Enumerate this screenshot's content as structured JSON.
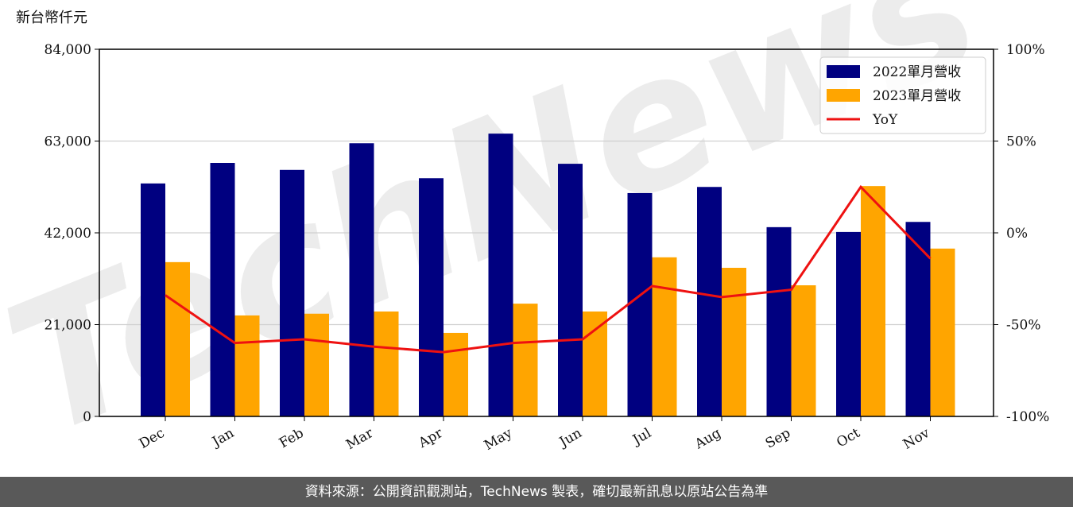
{
  "chart_data": {
    "type": "bar",
    "y_label": "新台幣仟元",
    "watermark": "TechNews",
    "categories": [
      "Dec",
      "Jan",
      "Feb",
      "Mar",
      "Apr",
      "May",
      "Jun",
      "Jul",
      "Aug",
      "Sep",
      "Oct",
      "Nov"
    ],
    "series": [
      {
        "name": "2022單月營收",
        "color": "#000080",
        "values": [
          53300,
          58000,
          56400,
          62500,
          54500,
          64700,
          57800,
          51100,
          52500,
          43300,
          42200,
          44500
        ]
      },
      {
        "name": "2023單月營收",
        "color": "#ffa500",
        "values": [
          35300,
          23100,
          23500,
          24000,
          19100,
          25800,
          24000,
          36400,
          34000,
          30000,
          52700,
          38400
        ]
      },
      {
        "name": "YoY",
        "color": "#ee1111",
        "type": "line",
        "axis": "y2",
        "values": [
          -34,
          -60,
          -58,
          -62,
          -65,
          -60,
          -58,
          -29,
          -35,
          -31,
          25,
          -14
        ]
      }
    ],
    "ylim": [
      0,
      84000
    ],
    "yticks": [
      0,
      {
        "value": 21000,
        "label": "21,000"
      },
      {
        "value": 42000,
        "label": "42,000"
      },
      {
        "value": 63000,
        "label": "63,000"
      },
      {
        "value": 84000,
        "label": "84,000"
      }
    ],
    "y2lim": [
      -100,
      100
    ],
    "y2ticks": [
      {
        "value": -100,
        "label": "-100%"
      },
      {
        "value": -50,
        "label": "-50%"
      },
      {
        "value": 0,
        "label": "0%"
      },
      {
        "value": 50,
        "label": "50%"
      },
      {
        "value": 100,
        "label": "100%"
      }
    ],
    "grid": true,
    "legend": "upper right",
    "source": "資料來源：公開資訊觀測站，TechNews 製表，確切最新訊息以原站公告為準"
  }
}
